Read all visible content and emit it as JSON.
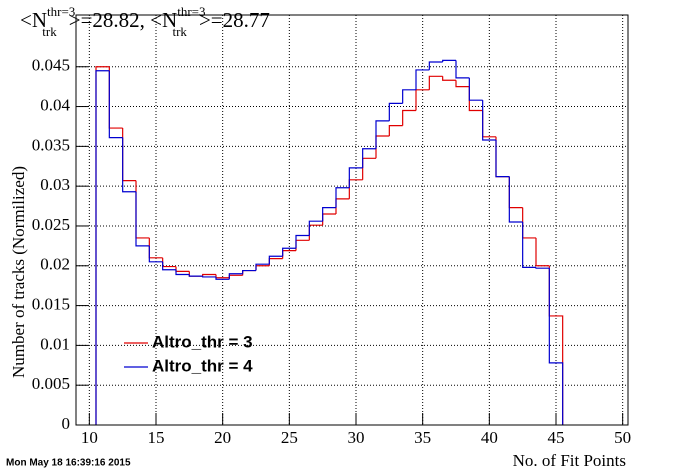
{
  "chart_data": {
    "type": "histogram",
    "title": [
      "<N",
      "thr=3",
      "trk",
      ">=28.82, <N",
      "thr=3",
      "trk",
      ">=28.77"
    ],
    "x_label": "No. of Fit Points",
    "y_label": "Number of tracks (Normilized)",
    "timestamp": "Mon May 18 16:39:16 2015",
    "bins": [
      10.5,
      11.5,
      12.5,
      13.5,
      14.5,
      15.5,
      16.5,
      17.5,
      18.5,
      19.5,
      20.5,
      21.5,
      22.5,
      23.5,
      24.5,
      25.5,
      26.5,
      27.5,
      28.5,
      29.5,
      30.5,
      31.5,
      32.5,
      33.5,
      34.5,
      35.5,
      36.5,
      37.5,
      38.5,
      39.5,
      40.5,
      41.5,
      42.5,
      43.5,
      44.5,
      45.5
    ],
    "series": [
      {
        "name": "Altro_thr = 3",
        "color": "#e00000",
        "values": [
          0.045,
          0.0373,
          0.0307,
          0.0235,
          0.021,
          0.0199,
          0.0193,
          0.0187,
          0.0189,
          0.0185,
          0.0188,
          0.0194,
          0.02,
          0.0209,
          0.0219,
          0.0232,
          0.0251,
          0.0265,
          0.0284,
          0.0308,
          0.0335,
          0.0363,
          0.0376,
          0.0395,
          0.0421,
          0.0438,
          0.0433,
          0.0425,
          0.0395,
          0.0362,
          0.0312,
          0.0273,
          0.0235,
          0.02,
          0.0137
        ]
      },
      {
        "name": "Altro_thr = 4",
        "color": "#0000d0",
        "values": [
          0.0445,
          0.0361,
          0.0293,
          0.0225,
          0.0205,
          0.0195,
          0.0189,
          0.0187,
          0.0186,
          0.0183,
          0.019,
          0.0194,
          0.0202,
          0.0212,
          0.0222,
          0.0238,
          0.0256,
          0.0273,
          0.0298,
          0.0323,
          0.0347,
          0.0382,
          0.0404,
          0.0421,
          0.0446,
          0.0456,
          0.0458,
          0.0436,
          0.0408,
          0.0358,
          0.0312,
          0.0255,
          0.0198,
          0.0197,
          0.0078
        ]
      }
    ],
    "xlim": [
      9,
      50.4
    ],
    "ylim": [
      0,
      0.0515
    ],
    "xticks": [
      10,
      15,
      20,
      25,
      30,
      35,
      40,
      45,
      50
    ],
    "yticks": [
      0,
      0.005,
      0.01,
      0.015,
      0.02,
      0.025,
      0.03,
      0.035,
      0.04,
      0.045
    ],
    "grid": true,
    "legend": "lower left"
  }
}
